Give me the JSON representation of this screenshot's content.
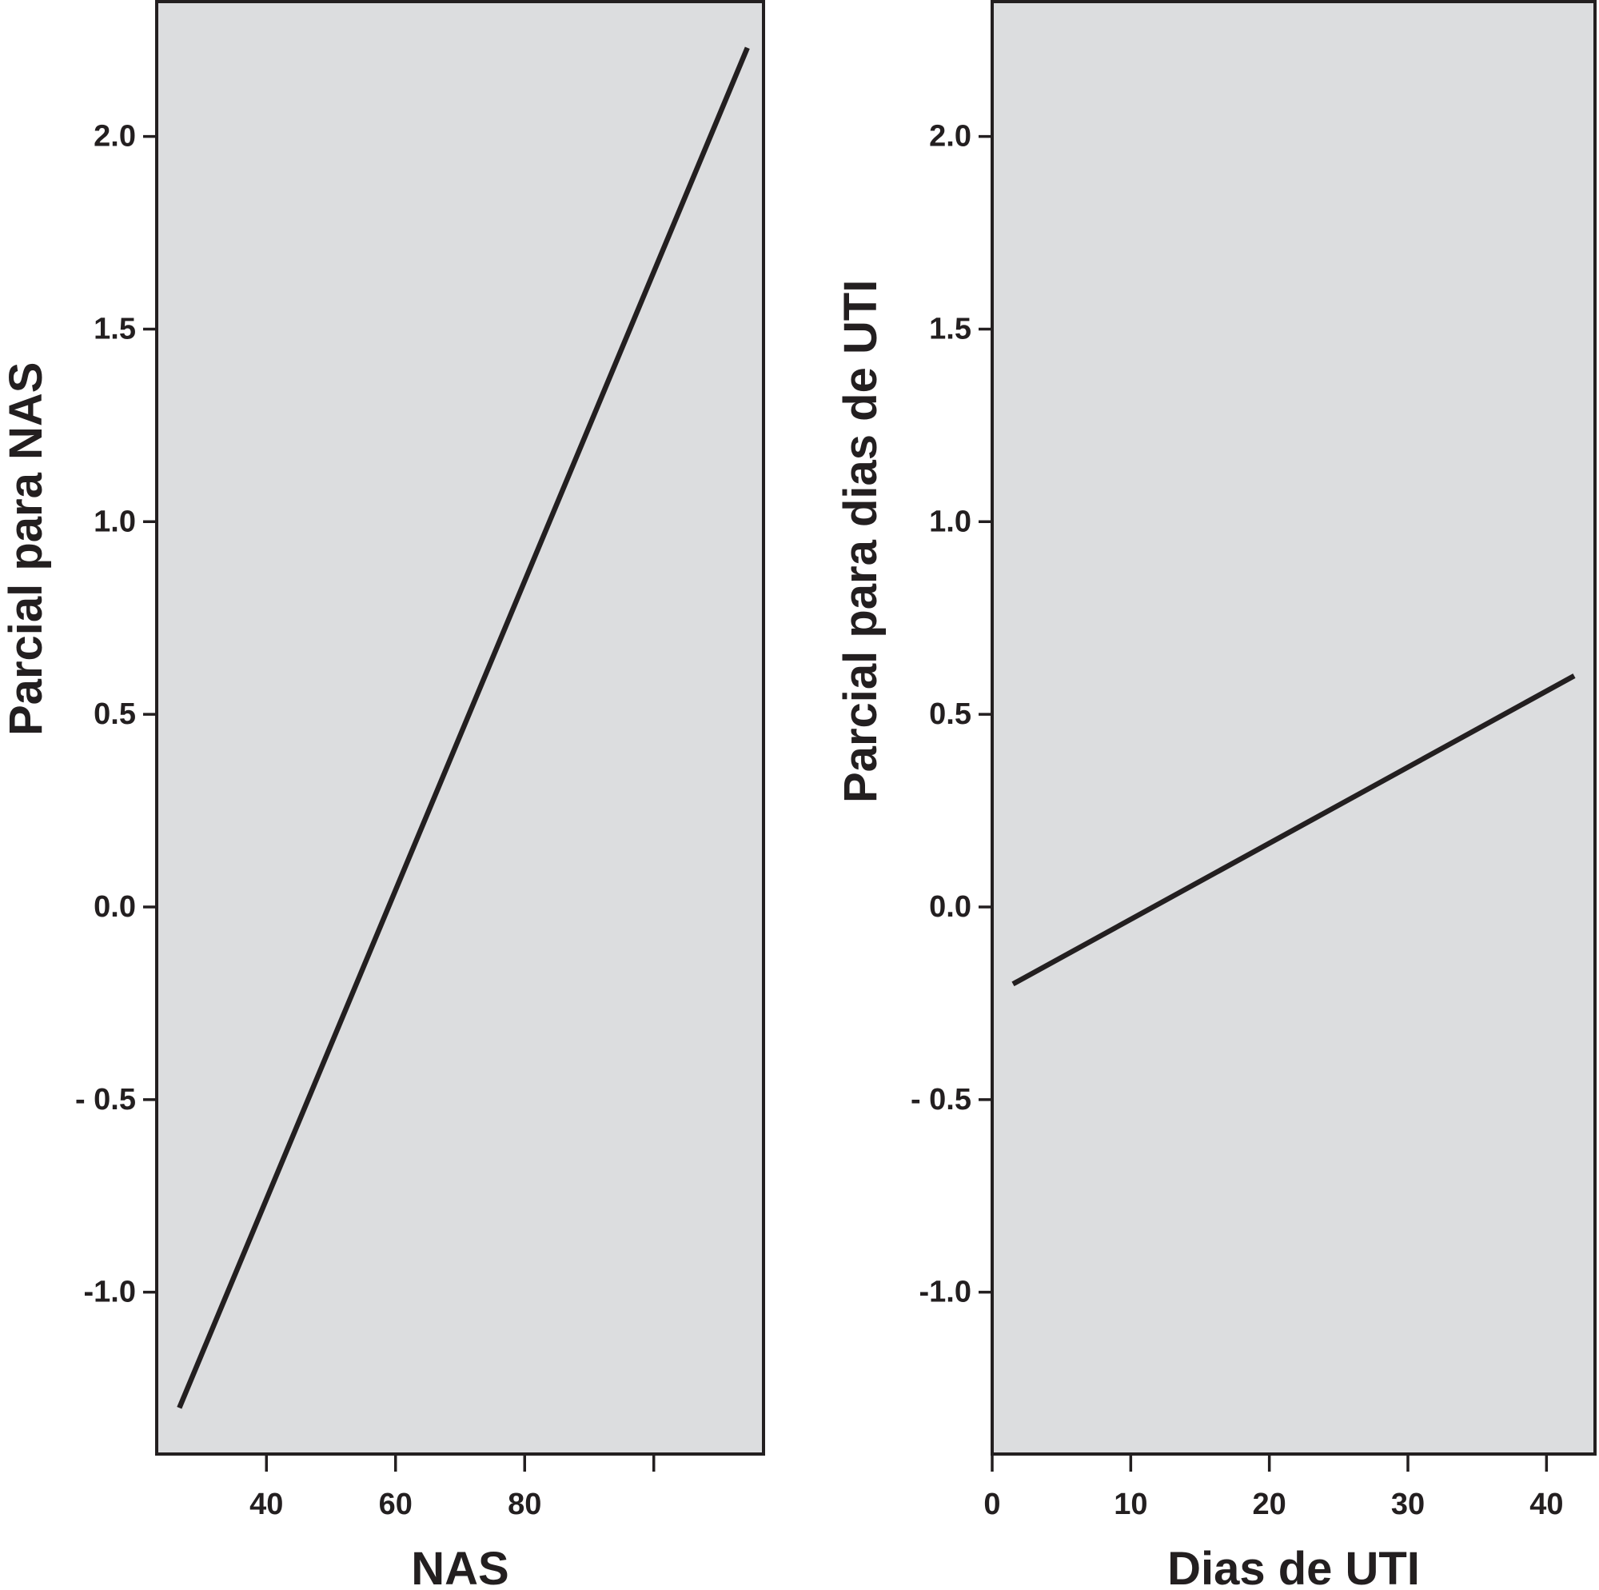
{
  "colors": {
    "plot_background": "#dcdddf",
    "line": "#231f20",
    "frame": "#231f20",
    "text": "#231f20",
    "page_background": "#ffffff"
  },
  "chart_data": [
    {
      "type": "line",
      "title": "",
      "xlabel": "NAS",
      "ylabel": "Parcial para NAS",
      "xlim": [
        23,
        117
      ],
      "ylim": [
        -1.42,
        2.35
      ],
      "x_ticks": [
        40,
        60,
        80,
        100
      ],
      "x_tick_labels": [
        "40",
        "60",
        "80",
        ""
      ],
      "y_ticks": [
        -1.0,
        -0.5,
        0.0,
        0.5,
        1.0,
        1.5,
        2.0
      ],
      "y_tick_labels": [
        "-1.0",
        "- 0.5",
        "0.0",
        "0.5",
        "1.0",
        "1.5",
        "2.0"
      ],
      "grid": false,
      "series": [
        {
          "x": [
            26.5,
            114.5
          ],
          "y": [
            -1.3,
            2.23
          ]
        }
      ]
    },
    {
      "type": "line",
      "title": "",
      "xlabel": "Dias de UTI",
      "ylabel": "Parcial para dias de UTI",
      "xlim": [
        0,
        43.5
      ],
      "ylim": [
        -1.42,
        2.35
      ],
      "x_ticks": [
        0,
        10,
        20,
        30,
        40
      ],
      "x_tick_labels": [
        "0",
        "10",
        "20",
        "30",
        "40"
      ],
      "y_ticks": [
        -1.0,
        -0.5,
        0.0,
        0.5,
        1.0,
        1.5,
        2.0
      ],
      "y_tick_labels": [
        "-1.0",
        "- 0.5",
        "0.0",
        "0.5",
        "1.0",
        "1.5",
        "2.0"
      ],
      "grid": false,
      "series": [
        {
          "x": [
            1.5,
            42.0
          ],
          "y": [
            -0.2,
            0.6
          ]
        }
      ]
    }
  ]
}
